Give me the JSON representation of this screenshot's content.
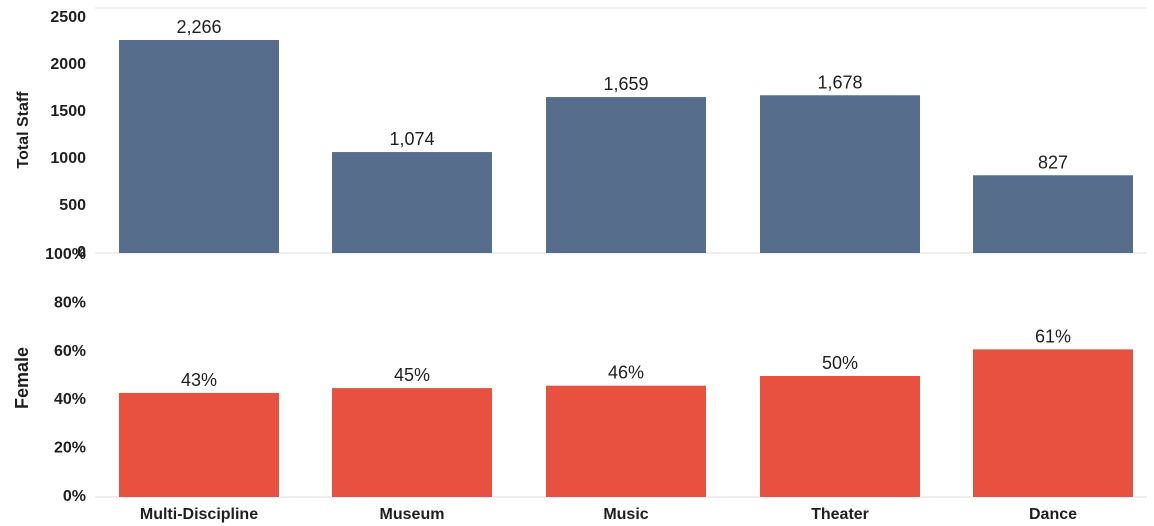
{
  "chart_data": [
    {
      "type": "bar",
      "categories": [
        "Multi-Discipline",
        "Museum",
        "Music",
        "Theater",
        "Dance"
      ],
      "values": [
        2266,
        1074,
        1659,
        1678,
        827
      ],
      "data_labels": [
        "2,266",
        "1,074",
        "1,659",
        "1,678",
        "827"
      ],
      "ylabel": "Total Staff",
      "ylim": [
        0,
        2500
      ],
      "yticks": [
        "0",
        "500",
        "1000",
        "1500",
        "2000",
        "2500"
      ],
      "color": "#566e8b",
      "grid": false
    },
    {
      "type": "bar",
      "categories": [
        "Multi-Discipline",
        "Museum",
        "Music",
        "Theater",
        "Dance"
      ],
      "values": [
        43,
        45,
        46,
        50,
        61
      ],
      "data_labels": [
        "43%",
        "45%",
        "46%",
        "50%",
        "61%"
      ],
      "ylabel": "Female",
      "ylim": [
        0,
        100
      ],
      "yticks": [
        "0%",
        "20%",
        "40%",
        "60%",
        "80%",
        "100%"
      ],
      "color": "#e8503f",
      "grid": false
    }
  ]
}
